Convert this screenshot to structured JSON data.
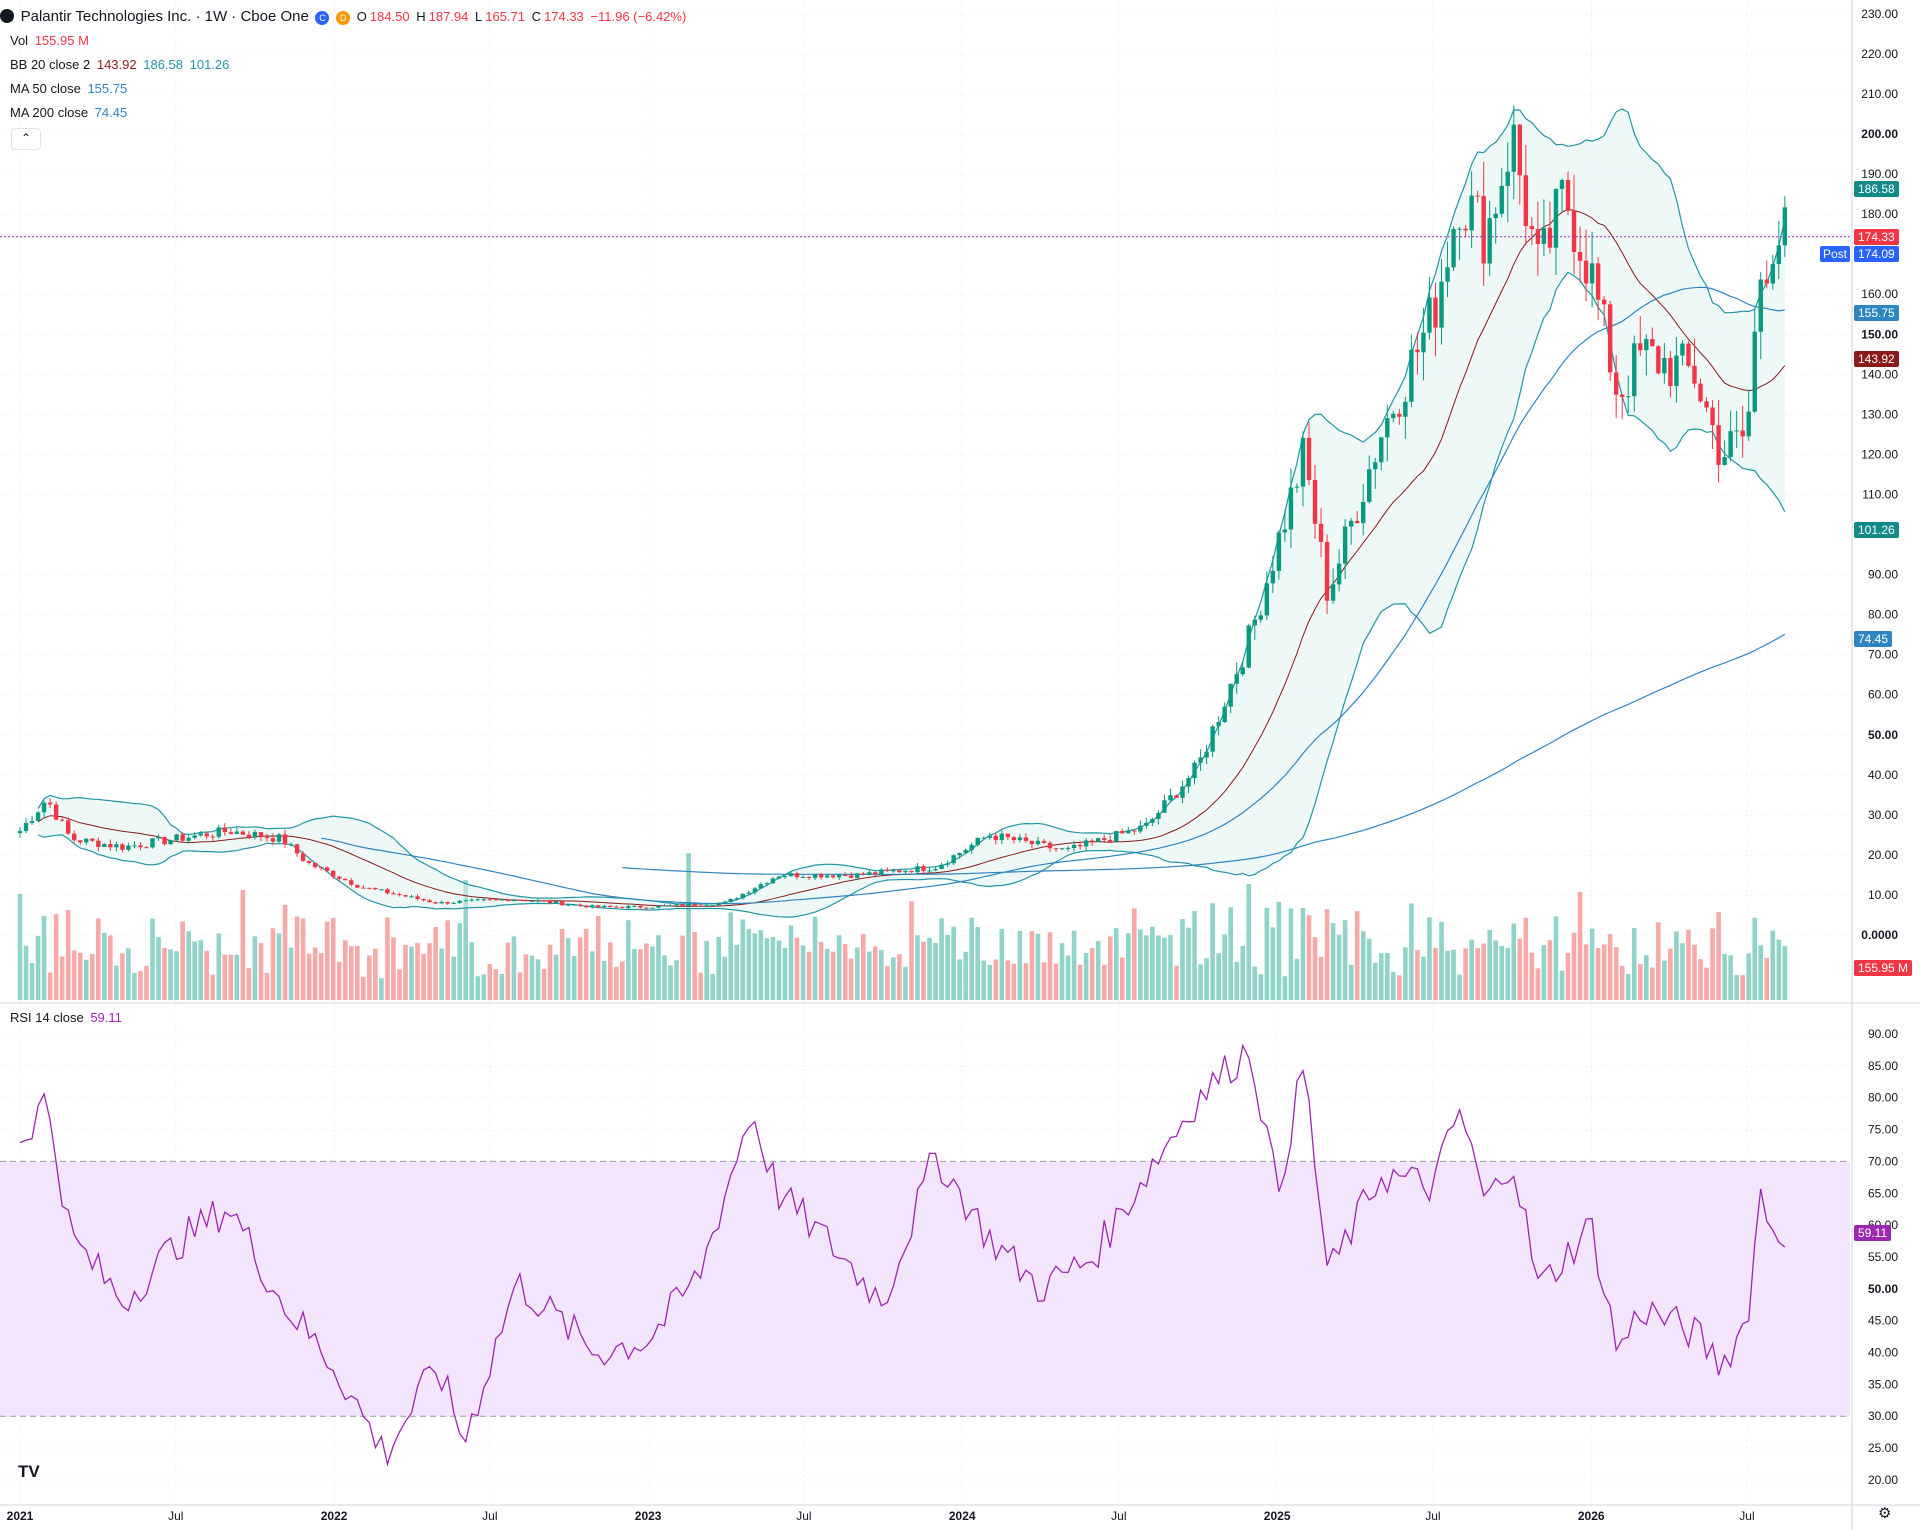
{
  "header": {
    "symbol_icon": "palantir-logo-icon",
    "title": "Palantir Technologies Inc. · 1W · Cboe One",
    "badges": [
      "C",
      "D"
    ],
    "open_label": "O",
    "open": "184.50",
    "high_label": "H",
    "high": "187.94",
    "low_label": "L",
    "low": "165.71",
    "close_label": "C",
    "close": "174.33",
    "change": "−11.96 (−6.42%)"
  },
  "indicators": {
    "vol": {
      "label": "Vol",
      "value": "155.95 M"
    },
    "bb": {
      "label": "BB 20 close 2",
      "basis": "143.92",
      "upper": "186.58",
      "lower": "101.26"
    },
    "ma50": {
      "label": "MA 50 close",
      "value": "155.75"
    },
    "ma200": {
      "label": "MA 200 close",
      "value": "74.45"
    },
    "collapse_icon": "chevron-up-icon"
  },
  "price_axis": {
    "ticks": [
      "230.00",
      "220.00",
      "210.00",
      "200.00",
      "190.00",
      "180.00",
      "160.00",
      "150.00",
      "140.00",
      "130.00",
      "120.00",
      "110.00",
      "90.00",
      "80.00",
      "70.00",
      "60.00",
      "50.00",
      "40.00",
      "30.00",
      "20.00",
      "10.00",
      "0.0000"
    ],
    "badges": {
      "bb_upper": "186.58",
      "close": "174.33",
      "post_label": "Post",
      "post": "174.09",
      "ma50": "155.75",
      "bb_basis": "143.92",
      "bb_lower": "101.26",
      "ma200": "74.45",
      "volume": "155.95 M"
    }
  },
  "rsi": {
    "label": "RSI 14 close",
    "value": "59.11",
    "ticks": [
      "90.00",
      "85.00",
      "80.00",
      "75.00",
      "70.00",
      "65.00",
      "60.00",
      "55.00",
      "50.00",
      "45.00",
      "40.00",
      "35.00",
      "30.00",
      "25.00",
      "20.00"
    ],
    "upper_band": 70,
    "lower_band": 30
  },
  "time_axis": {
    "labels": [
      "2021",
      "Jul",
      "2022",
      "Jul",
      "2023",
      "Jul",
      "2024",
      "Jul",
      "2025",
      "Jul",
      "2026",
      "Jul"
    ]
  },
  "footer": {
    "logo": "TV",
    "logo_icon": "tradingview-logo-icon",
    "settings_icon": "gear-icon"
  },
  "colors": {
    "up": "#089981",
    "down": "#f23645",
    "bb": "#2196a6",
    "bb_basis": "#8b1a1a",
    "ma": "#2e86c1",
    "rsi": "#9c27b0",
    "post": "#2962ff"
  },
  "chart_data": [
    {
      "type": "candlestick",
      "interval": "1W",
      "x_range": [
        "2021-01",
        "2026-08"
      ],
      "y_range": [
        0,
        230
      ],
      "approx_weekly_close_path": [
        {
          "date": "2021-01",
          "close": 26
        },
        {
          "date": "2021-02",
          "close": 34
        },
        {
          "date": "2021-03",
          "close": 24
        },
        {
          "date": "2021-05",
          "close": 22
        },
        {
          "date": "2021-07",
          "close": 24
        },
        {
          "date": "2021-09",
          "close": 26
        },
        {
          "date": "2021-11",
          "close": 24
        },
        {
          "date": "2021-12",
          "close": 18
        },
        {
          "date": "2022-02",
          "close": 12
        },
        {
          "date": "2022-05",
          "close": 8
        },
        {
          "date": "2022-08",
          "close": 9
        },
        {
          "date": "2022-11",
          "close": 7
        },
        {
          "date": "2023-01",
          "close": 7
        },
        {
          "date": "2023-04",
          "close": 8
        },
        {
          "date": "2023-06",
          "close": 15
        },
        {
          "date": "2023-09",
          "close": 15
        },
        {
          "date": "2023-12",
          "close": 17
        },
        {
          "date": "2024-02",
          "close": 25
        },
        {
          "date": "2024-05",
          "close": 21
        },
        {
          "date": "2024-08",
          "close": 27
        },
        {
          "date": "2024-10",
          "close": 42
        },
        {
          "date": "2024-12",
          "close": 75
        },
        {
          "date": "2025-02",
          "close": 120
        },
        {
          "date": "2025-03",
          "close": 85
        },
        {
          "date": "2025-05",
          "close": 125
        },
        {
          "date": "2025-07",
          "close": 155
        },
        {
          "date": "2025-08",
          "close": 185
        },
        {
          "date": "2025-09",
          "close": 175
        },
        {
          "date": "2025-10",
          "close": 200
        },
        {
          "date": "2025-11",
          "close": 165
        },
        {
          "date": "2025-12",
          "close": 185
        },
        {
          "date": "2026-01",
          "close": 165
        },
        {
          "date": "2026-02",
          "close": 135
        },
        {
          "date": "2026-03",
          "close": 145
        },
        {
          "date": "2026-05",
          "close": 140
        },
        {
          "date": "2026-06",
          "close": 120
        },
        {
          "date": "2026-07",
          "close": 125
        },
        {
          "date": "2026-07b",
          "close": 165
        },
        {
          "date": "2026-08",
          "close": 174.33
        }
      ]
    },
    {
      "type": "line",
      "title": "RSI 14 close",
      "y_range": [
        20,
        90
      ],
      "approx_values": [
        {
          "date": "2021-01",
          "value": 73
        },
        {
          "date": "2021-02",
          "value": 80
        },
        {
          "date": "2021-03",
          "value": 58
        },
        {
          "date": "2021-05",
          "value": 48
        },
        {
          "date": "2021-07",
          "value": 57
        },
        {
          "date": "2021-09",
          "value": 63
        },
        {
          "date": "2021-11",
          "value": 48
        },
        {
          "date": "2022-01",
          "value": 38
        },
        {
          "date": "2022-03",
          "value": 24
        },
        {
          "date": "2022-05",
          "value": 38
        },
        {
          "date": "2022-06",
          "value": 26
        },
        {
          "date": "2022-08",
          "value": 51
        },
        {
          "date": "2022-11",
          "value": 40
        },
        {
          "date": "2023-01",
          "value": 42
        },
        {
          "date": "2023-03",
          "value": 52
        },
        {
          "date": "2023-05",
          "value": 78
        },
        {
          "date": "2023-06",
          "value": 65
        },
        {
          "date": "2023-08",
          "value": 57
        },
        {
          "date": "2023-10",
          "value": 48
        },
        {
          "date": "2023-12",
          "value": 71
        },
        {
          "date": "2024-02",
          "value": 58
        },
        {
          "date": "2024-04",
          "value": 50
        },
        {
          "date": "2024-06",
          "value": 55
        },
        {
          "date": "2024-08",
          "value": 68
        },
        {
          "date": "2024-10",
          "value": 80
        },
        {
          "date": "2024-12",
          "value": 88
        },
        {
          "date": "2025-01",
          "value": 65
        },
        {
          "date": "2025-02",
          "value": 85
        },
        {
          "date": "2025-03",
          "value": 52
        },
        {
          "date": "2025-05",
          "value": 68
        },
        {
          "date": "2025-07",
          "value": 66
        },
        {
          "date": "2025-08",
          "value": 78
        },
        {
          "date": "2025-09",
          "value": 63
        },
        {
          "date": "2025-10",
          "value": 71
        },
        {
          "date": "2025-11",
          "value": 50
        },
        {
          "date": "2026-01",
          "value": 60
        },
        {
          "date": "2026-02",
          "value": 40
        },
        {
          "date": "2026-03",
          "value": 47
        },
        {
          "date": "2026-05",
          "value": 43
        },
        {
          "date": "2026-06",
          "value": 38
        },
        {
          "date": "2026-07",
          "value": 45
        },
        {
          "date": "2026-07b",
          "value": 65
        },
        {
          "date": "2026-08",
          "value": 59.11
        }
      ]
    }
  ]
}
